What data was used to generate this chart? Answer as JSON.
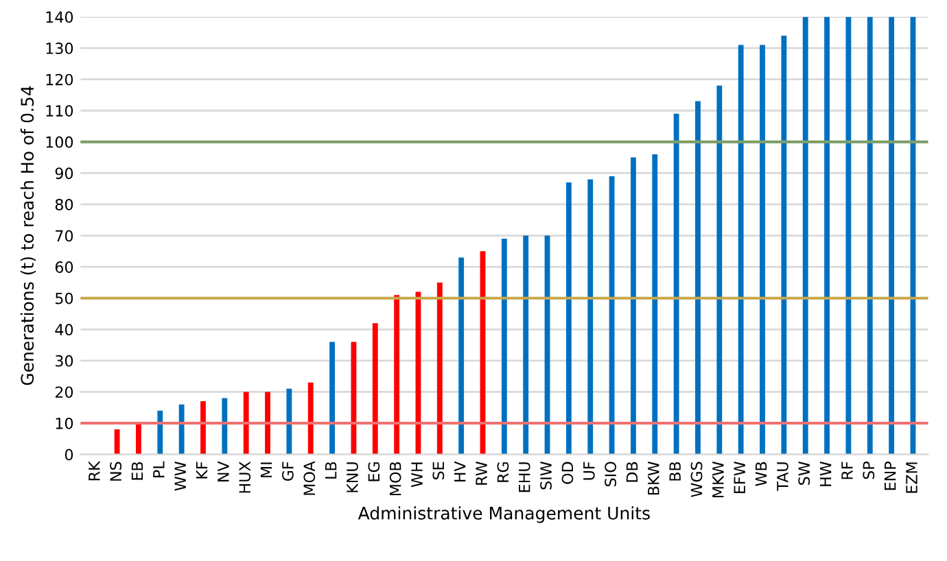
{
  "chart_data": {
    "type": "bar",
    "xlabel": "Administrative Management Units",
    "ylabel": "Generations (t) to reach Ho of 0.54",
    "categories": [
      "RK",
      "NS",
      "EB",
      "PL",
      "WW",
      "KF",
      "NV",
      "HUX",
      "MI",
      "GF",
      "MOA",
      "LB",
      "KNU",
      "EG",
      "MOB",
      "WH",
      "SE",
      "HV",
      "RW",
      "RG",
      "EHU",
      "SIW",
      "OD",
      "UF",
      "SIO",
      "DB",
      "BKW",
      "BB",
      "WGS",
      "MKW",
      "EFW",
      "WB",
      "TAU",
      "SW",
      "HW",
      "RF",
      "SP",
      "ENP",
      "EZM"
    ],
    "values": [
      0,
      8,
      10,
      14,
      16,
      17,
      18,
      20,
      20,
      21,
      23,
      36,
      36,
      42,
      51,
      52,
      55,
      63,
      65,
      69,
      70,
      70,
      87,
      88,
      89,
      95,
      96,
      109,
      113,
      118,
      131,
      131,
      134,
      140,
      140,
      140,
      140,
      140,
      140
    ],
    "colors": [
      "#ff0000",
      "#ff0000",
      "#ff0000",
      "#0070c0",
      "#0070c0",
      "#ff0000",
      "#0070c0",
      "#ff0000",
      "#ff0000",
      "#0070c0",
      "#ff0000",
      "#0070c0",
      "#ff0000",
      "#ff0000",
      "#ff0000",
      "#ff0000",
      "#ff0000",
      "#0070c0",
      "#ff0000",
      "#0070c0",
      "#0070c0",
      "#0070c0",
      "#0070c0",
      "#0070c0",
      "#0070c0",
      "#0070c0",
      "#0070c0",
      "#0070c0",
      "#0070c0",
      "#0070c0",
      "#0070c0",
      "#0070c0",
      "#0070c0",
      "#0070c0",
      "#0070c0",
      "#0070c0",
      "#0070c0",
      "#0070c0",
      "#0070c0"
    ],
    "ylim": [
      0,
      140
    ],
    "yticks": [
      0,
      10,
      20,
      30,
      40,
      50,
      60,
      70,
      80,
      90,
      100,
      110,
      120,
      130,
      140
    ],
    "grid": "y",
    "ref_lines": [
      {
        "axis": "y",
        "value": 10,
        "label": null,
        "color": "#f07070"
      },
      {
        "axis": "y",
        "value": 50,
        "label": null,
        "color": "#c8a84a"
      },
      {
        "axis": "y",
        "value": 100,
        "label": null,
        "color": "#7f9f6a"
      }
    ]
  }
}
